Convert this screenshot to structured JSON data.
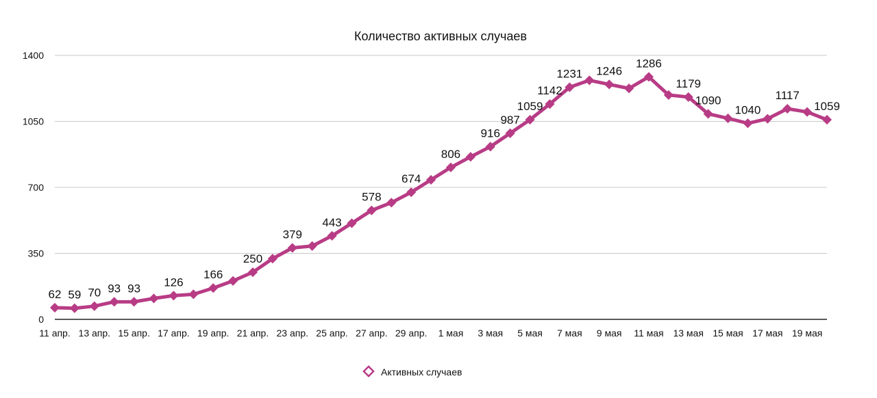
{
  "chart_data": {
    "type": "line",
    "title": "Количество активных случаев",
    "ylim": [
      0,
      1400
    ],
    "yticks": [
      0,
      350,
      700,
      1050,
      1400
    ],
    "grid": true,
    "legend_position": "bottom",
    "x": [
      "11 апр.",
      "12 апр.",
      "13 апр.",
      "14 апр.",
      "15 апр.",
      "16 апр.",
      "17 апр.",
      "18 апр.",
      "19 апр.",
      "20 апр.",
      "21 апр.",
      "22 апр.",
      "23 апр.",
      "24 апр.",
      "25 апр.",
      "26 апр.",
      "27 апр.",
      "28 апр.",
      "29 апр.",
      "30 апр.",
      "1 мая",
      "2 мая",
      "3 мая",
      "4 мая",
      "5 мая",
      "6 мая",
      "7 мая",
      "8 мая",
      "9 мая",
      "10 мая",
      "11 мая",
      "12 мая",
      "13 мая",
      "14 мая",
      "15 мая",
      "16 мая",
      "17 мая",
      "18 мая",
      "19 мая",
      "20 мая"
    ],
    "xtick_labels": [
      "11 апр.",
      "13 апр.",
      "15 апр.",
      "17 апр.",
      "19 апр.",
      "21 апр.",
      "23 апр.",
      "25 апр.",
      "27 апр.",
      "29 апр.",
      "1 мая",
      "3 мая",
      "5 мая",
      "7 мая",
      "9 мая",
      "11 мая",
      "13 мая",
      "15 мая",
      "17 мая",
      "19 мая"
    ],
    "series": [
      {
        "name": "Активных случаев",
        "color": "#b83c85",
        "values": [
          62,
          59,
          70,
          93,
          93,
          111,
          126,
          133,
          166,
          204,
          250,
          322,
          379,
          389,
          443,
          510,
          578,
          619,
          674,
          740,
          806,
          862,
          916,
          987,
          1059,
          1142,
          1231,
          1268,
          1246,
          1225,
          1286,
          1190,
          1179,
          1090,
          1066,
          1040,
          1064,
          1117,
          1100,
          1059
        ],
        "labels": [
          "62",
          "59",
          "70",
          "93",
          "93",
          "",
          "126",
          "",
          "166",
          "",
          "250",
          "",
          "379",
          "",
          "443",
          "",
          "578",
          "",
          "674",
          "",
          "806",
          "",
          "916",
          "987",
          "1059",
          "1142",
          "1231",
          "",
          "1246",
          "",
          "1286",
          "",
          "1179",
          "1090",
          "",
          "1040",
          "",
          "1117",
          "",
          "1059"
        ]
      }
    ]
  }
}
